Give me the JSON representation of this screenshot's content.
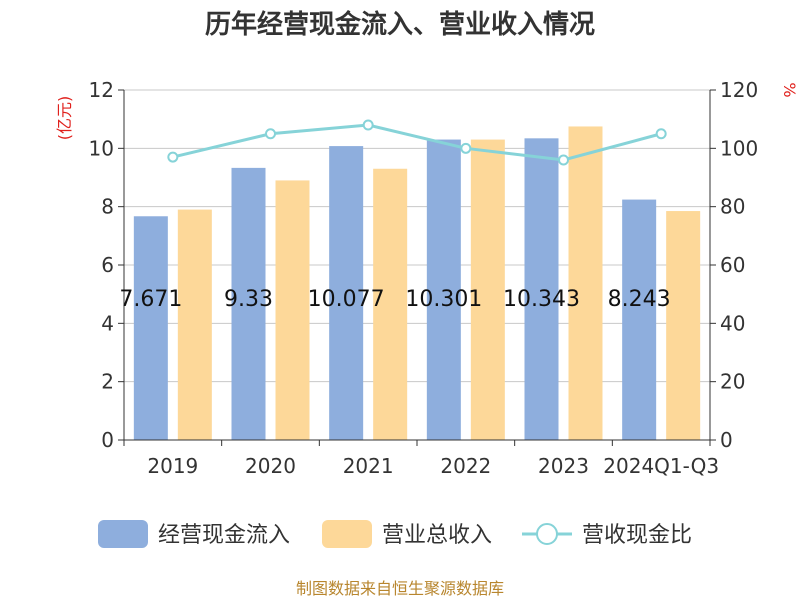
{
  "chart_data": {
    "type": "bar",
    "title": "历年经营现金流入、营业收入情况",
    "categories": [
      "2019",
      "2020",
      "2021",
      "2022",
      "2023",
      "2024Q1-Q3"
    ],
    "series": [
      {
        "name": "经营现金流入",
        "kind": "bar",
        "axis": "left",
        "color": "#8eaedd",
        "values": [
          7.671,
          9.33,
          10.077,
          10.301,
          10.343,
          8.243
        ],
        "labels": [
          "7.671",
          "9.33",
          "10.077",
          "10.301",
          "10.343",
          "8.243"
        ]
      },
      {
        "name": "营业总收入",
        "kind": "bar",
        "axis": "left",
        "color": "#fdd899",
        "values": [
          7.9,
          8.9,
          9.3,
          10.3,
          10.75,
          7.85
        ]
      },
      {
        "name": "营收现金比",
        "kind": "line",
        "axis": "right",
        "color": "#86d3d8",
        "values": [
          97,
          105,
          108,
          100,
          96,
          105
        ]
      }
    ],
    "left_axis": {
      "unit": "(亿元)",
      "min": 0,
      "max": 12,
      "ticks": [
        "0",
        "2",
        "4",
        "6",
        "8",
        "10",
        "12"
      ]
    },
    "right_axis": {
      "unit": "%",
      "min": 0,
      "max": 120,
      "ticks": [
        "0",
        "20",
        "40",
        "60",
        "80",
        "100",
        "120"
      ]
    },
    "grid": true,
    "legend_position": "bottom"
  },
  "source": "制图数据来自恒生聚源数据库"
}
